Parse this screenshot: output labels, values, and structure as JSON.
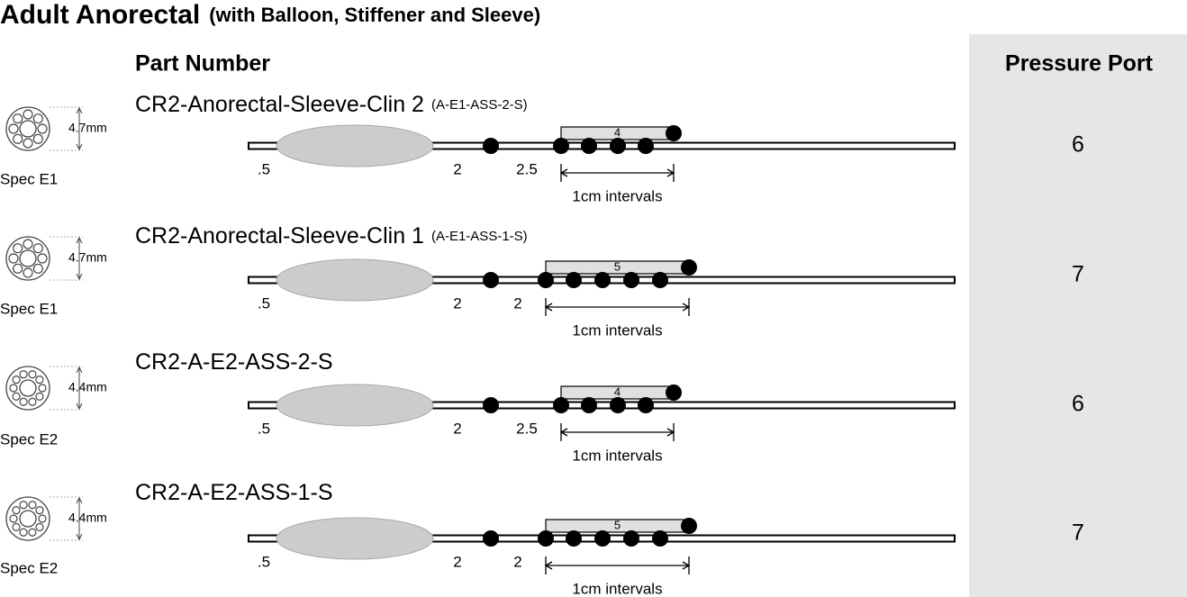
{
  "header": {
    "title": "Adult Anorectal",
    "subtitle": "(with Balloon, Stiffener and Sleeve)"
  },
  "columns": {
    "part_number": "Part Number",
    "pressure_port": "Pressure Port"
  },
  "rows": [
    {
      "spec": "Spec E1",
      "diameter": "4.7mm",
      "part_number": "CR2-Anorectal-Sleeve-Clin 2",
      "code": "(A-E1-ASS-2-S)",
      "spacings": [
        ".5",
        "2",
        "2.5"
      ],
      "sleeve": "4",
      "interval": "1cm intervals",
      "pressure_port": "6"
    },
    {
      "spec": "Spec E1",
      "diameter": "4.7mm",
      "part_number": "CR2-Anorectal-Sleeve-Clin 1",
      "code": "(A-E1-ASS-1-S)",
      "spacings": [
        ".5",
        "2",
        "2"
      ],
      "sleeve": "5",
      "interval": "1cm intervals",
      "pressure_port": "7"
    },
    {
      "spec": "Spec E2",
      "diameter": "4.4mm",
      "part_number": "CR2-A-E2-ASS-2-S",
      "spacings": [
        ".5",
        "2",
        "2.5"
      ],
      "sleeve": "4",
      "interval": "1cm intervals",
      "pressure_port": "6"
    },
    {
      "spec": "Spec E2",
      "diameter": "4.4mm",
      "part_number": "CR2-A-E2-ASS-1-S",
      "spacings": [
        ".5",
        "2",
        "2"
      ],
      "sleeve": "5",
      "interval": "1cm intervals",
      "pressure_port": "7"
    }
  ]
}
